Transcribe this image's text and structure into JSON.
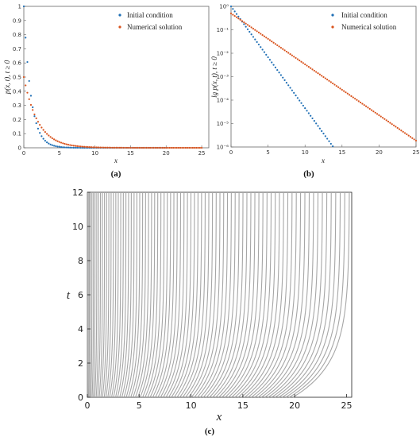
{
  "chart_data": [
    {
      "id": "a",
      "type": "scatter",
      "caption": "(a)",
      "xlabel": "x",
      "ylabel": "p(x, t), t ≥ 0",
      "xlim": [
        0,
        26
      ],
      "ylim": [
        0,
        1
      ],
      "xticks": [
        "0",
        "5",
        "10",
        "15",
        "20",
        "25"
      ],
      "yticks": [
        "0",
        "0.1",
        "0.2",
        "0.3",
        "0.4",
        "0.5",
        "0.6",
        "0.7",
        "0.8",
        "0.9",
        "1"
      ],
      "legend_position": "top-right",
      "series": [
        {
          "name": "Initial condition",
          "color": "#1f6fb5",
          "model": "exp",
          "amplitude": 1.0,
          "rate": 1.0,
          "x_start": 0,
          "x_end": 20,
          "x_step": 0.25
        },
        {
          "name": "Numerical solution",
          "color": "#d9541e",
          "model": "exp",
          "amplitude": 0.5,
          "rate": 0.5,
          "x_start": 0,
          "x_end": 25,
          "x_step": 0.25
        }
      ]
    },
    {
      "id": "b",
      "type": "scatter",
      "caption": "(b)",
      "xlabel": "x",
      "ylabel": "lg p(x, t), t ≥ 0",
      "xlim": [
        0,
        25
      ],
      "ylim": [
        1e-06,
        1
      ],
      "yscale": "log",
      "xticks": [
        "0",
        "5",
        "10",
        "15",
        "20",
        "25"
      ],
      "yticks": [
        "10⁻⁶",
        "10⁻⁵",
        "10⁻⁴",
        "10⁻³",
        "10⁻²",
        "10⁻¹",
        "10⁰"
      ],
      "legend_position": "top-right",
      "series": [
        {
          "name": "Initial condition",
          "color": "#1f6fb5",
          "model": "exp",
          "amplitude": 1.0,
          "rate": 1.0,
          "x_start": 0,
          "x_end": 20,
          "x_step": 0.25
        },
        {
          "name": "Numerical solution",
          "color": "#d9541e",
          "model": "exp",
          "amplitude": 0.5,
          "rate": 0.5,
          "x_start": 0,
          "x_end": 25,
          "x_step": 0.25
        }
      ]
    },
    {
      "id": "c",
      "type": "line",
      "caption": "(c)",
      "xlabel": "x",
      "ylabel": "t",
      "xlim": [
        0,
        25.5
      ],
      "ylim": [
        0,
        12
      ],
      "xticks": [
        "0",
        "5",
        "10",
        "15",
        "20",
        "25"
      ],
      "yticks": [
        "0",
        "2",
        "4",
        "6",
        "8",
        "10",
        "12"
      ],
      "line_color": "#a6a6a6",
      "characteristics": {
        "count": 81,
        "x0_max": 20,
        "x_end_max": 25.5,
        "transition_t": 2
      }
    }
  ]
}
